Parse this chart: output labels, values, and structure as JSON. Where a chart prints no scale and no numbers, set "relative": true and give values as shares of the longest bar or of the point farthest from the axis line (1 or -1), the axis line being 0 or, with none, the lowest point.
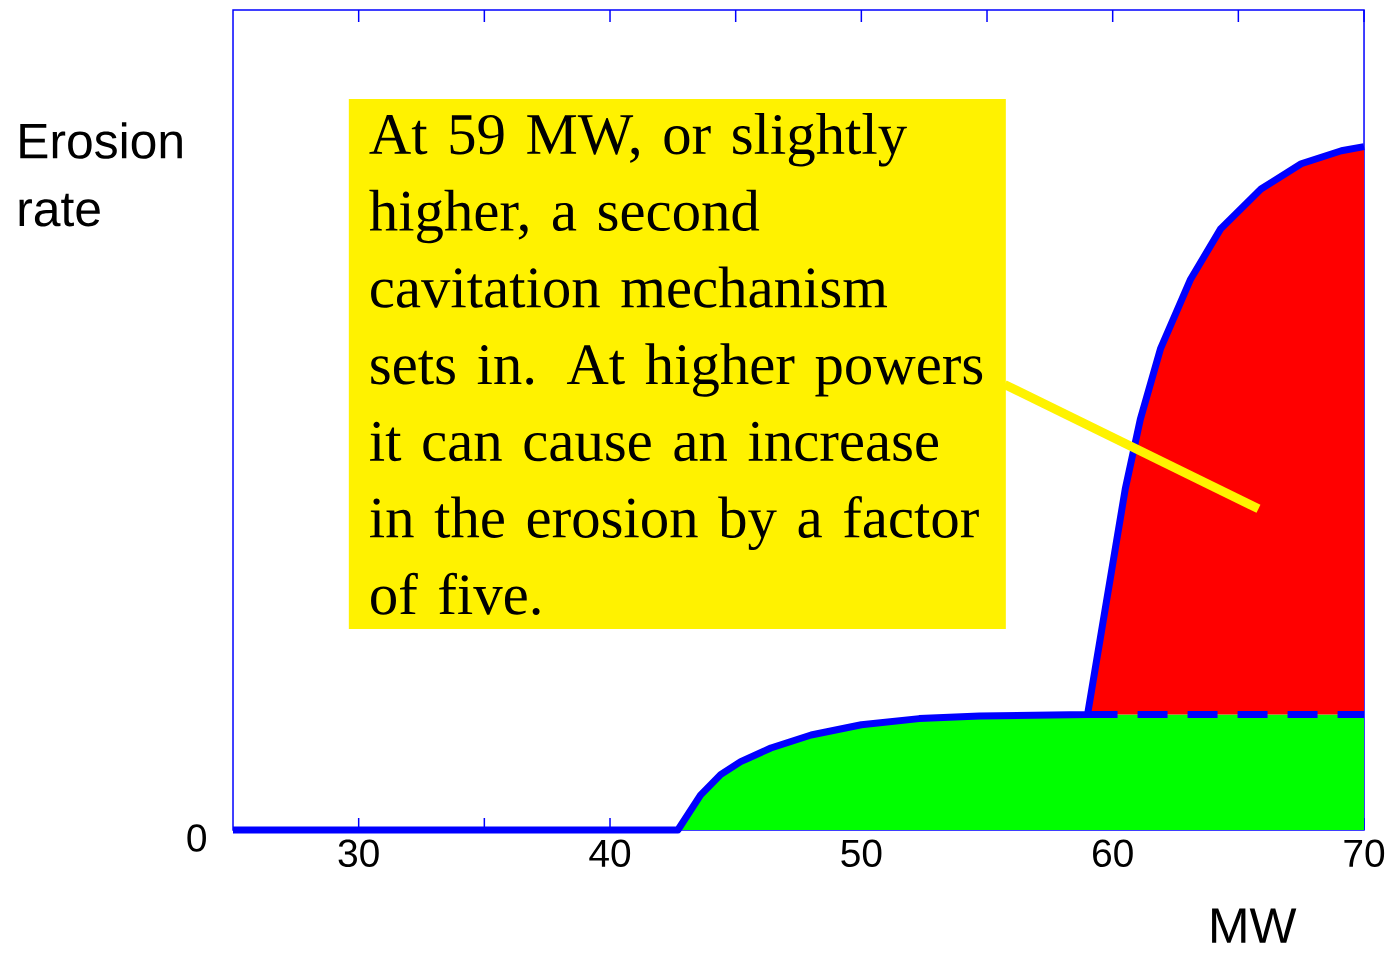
{
  "chart_data": {
    "type": "line",
    "relative": true,
    "xlabel": "MW",
    "ylabel": "Erosion rate",
    "xlim": [
      25,
      70
    ],
    "xticks": [
      30,
      40,
      50,
      60,
      70
    ],
    "grid": false,
    "annotations": [
      "0",
      "At 59 MW, or slightly higher, a second cavitation mechanism sets in. At higher powers it can cause an increase in the erosion by a factor of five."
    ],
    "series": [
      {
        "type": "area",
        "color": "#00ff00",
        "x": [
          42.7,
          43.6,
          44.4,
          45.2,
          46.4,
          48.0,
          50.0,
          52.3,
          54.7,
          59.0,
          70
        ],
        "values": [
          0,
          0.051,
          0.081,
          0.1,
          0.12,
          0.139,
          0.154,
          0.163,
          0.167,
          0.169,
          0.169
        ]
      },
      {
        "type": "area",
        "color": "#ff0000",
        "x": [
          59.0,
          59.5,
          59.9,
          60.5,
          61.1,
          61.9,
          63.1,
          64.3,
          65.9,
          67.5,
          69.1,
          70
        ],
        "values": [
          0.169,
          0.279,
          0.367,
          0.499,
          0.601,
          0.704,
          0.806,
          0.88,
          0.938,
          0.975,
          0.994,
          1.0
        ]
      },
      {
        "color": "#0000ff",
        "line_style": "solid",
        "x": [
          25,
          42.7,
          43.6,
          44.4,
          45.2,
          46.4,
          48.0,
          50.0,
          52.3,
          54.7,
          59.0,
          59.5,
          59.9,
          60.5,
          61.1,
          61.9,
          63.1,
          64.3,
          65.9,
          67.5,
          69.1,
          70
        ],
        "values": [
          0,
          0,
          0.051,
          0.081,
          0.1,
          0.12,
          0.139,
          0.154,
          0.163,
          0.167,
          0.169,
          0.279,
          0.367,
          0.499,
          0.601,
          0.704,
          0.806,
          0.88,
          0.938,
          0.975,
          0.994,
          1.0
        ]
      },
      {
        "color": "#0000ff",
        "line_style": "dashed",
        "x": [
          59.0,
          70
        ],
        "values": [
          0.169,
          0.169
        ]
      }
    ]
  }
}
